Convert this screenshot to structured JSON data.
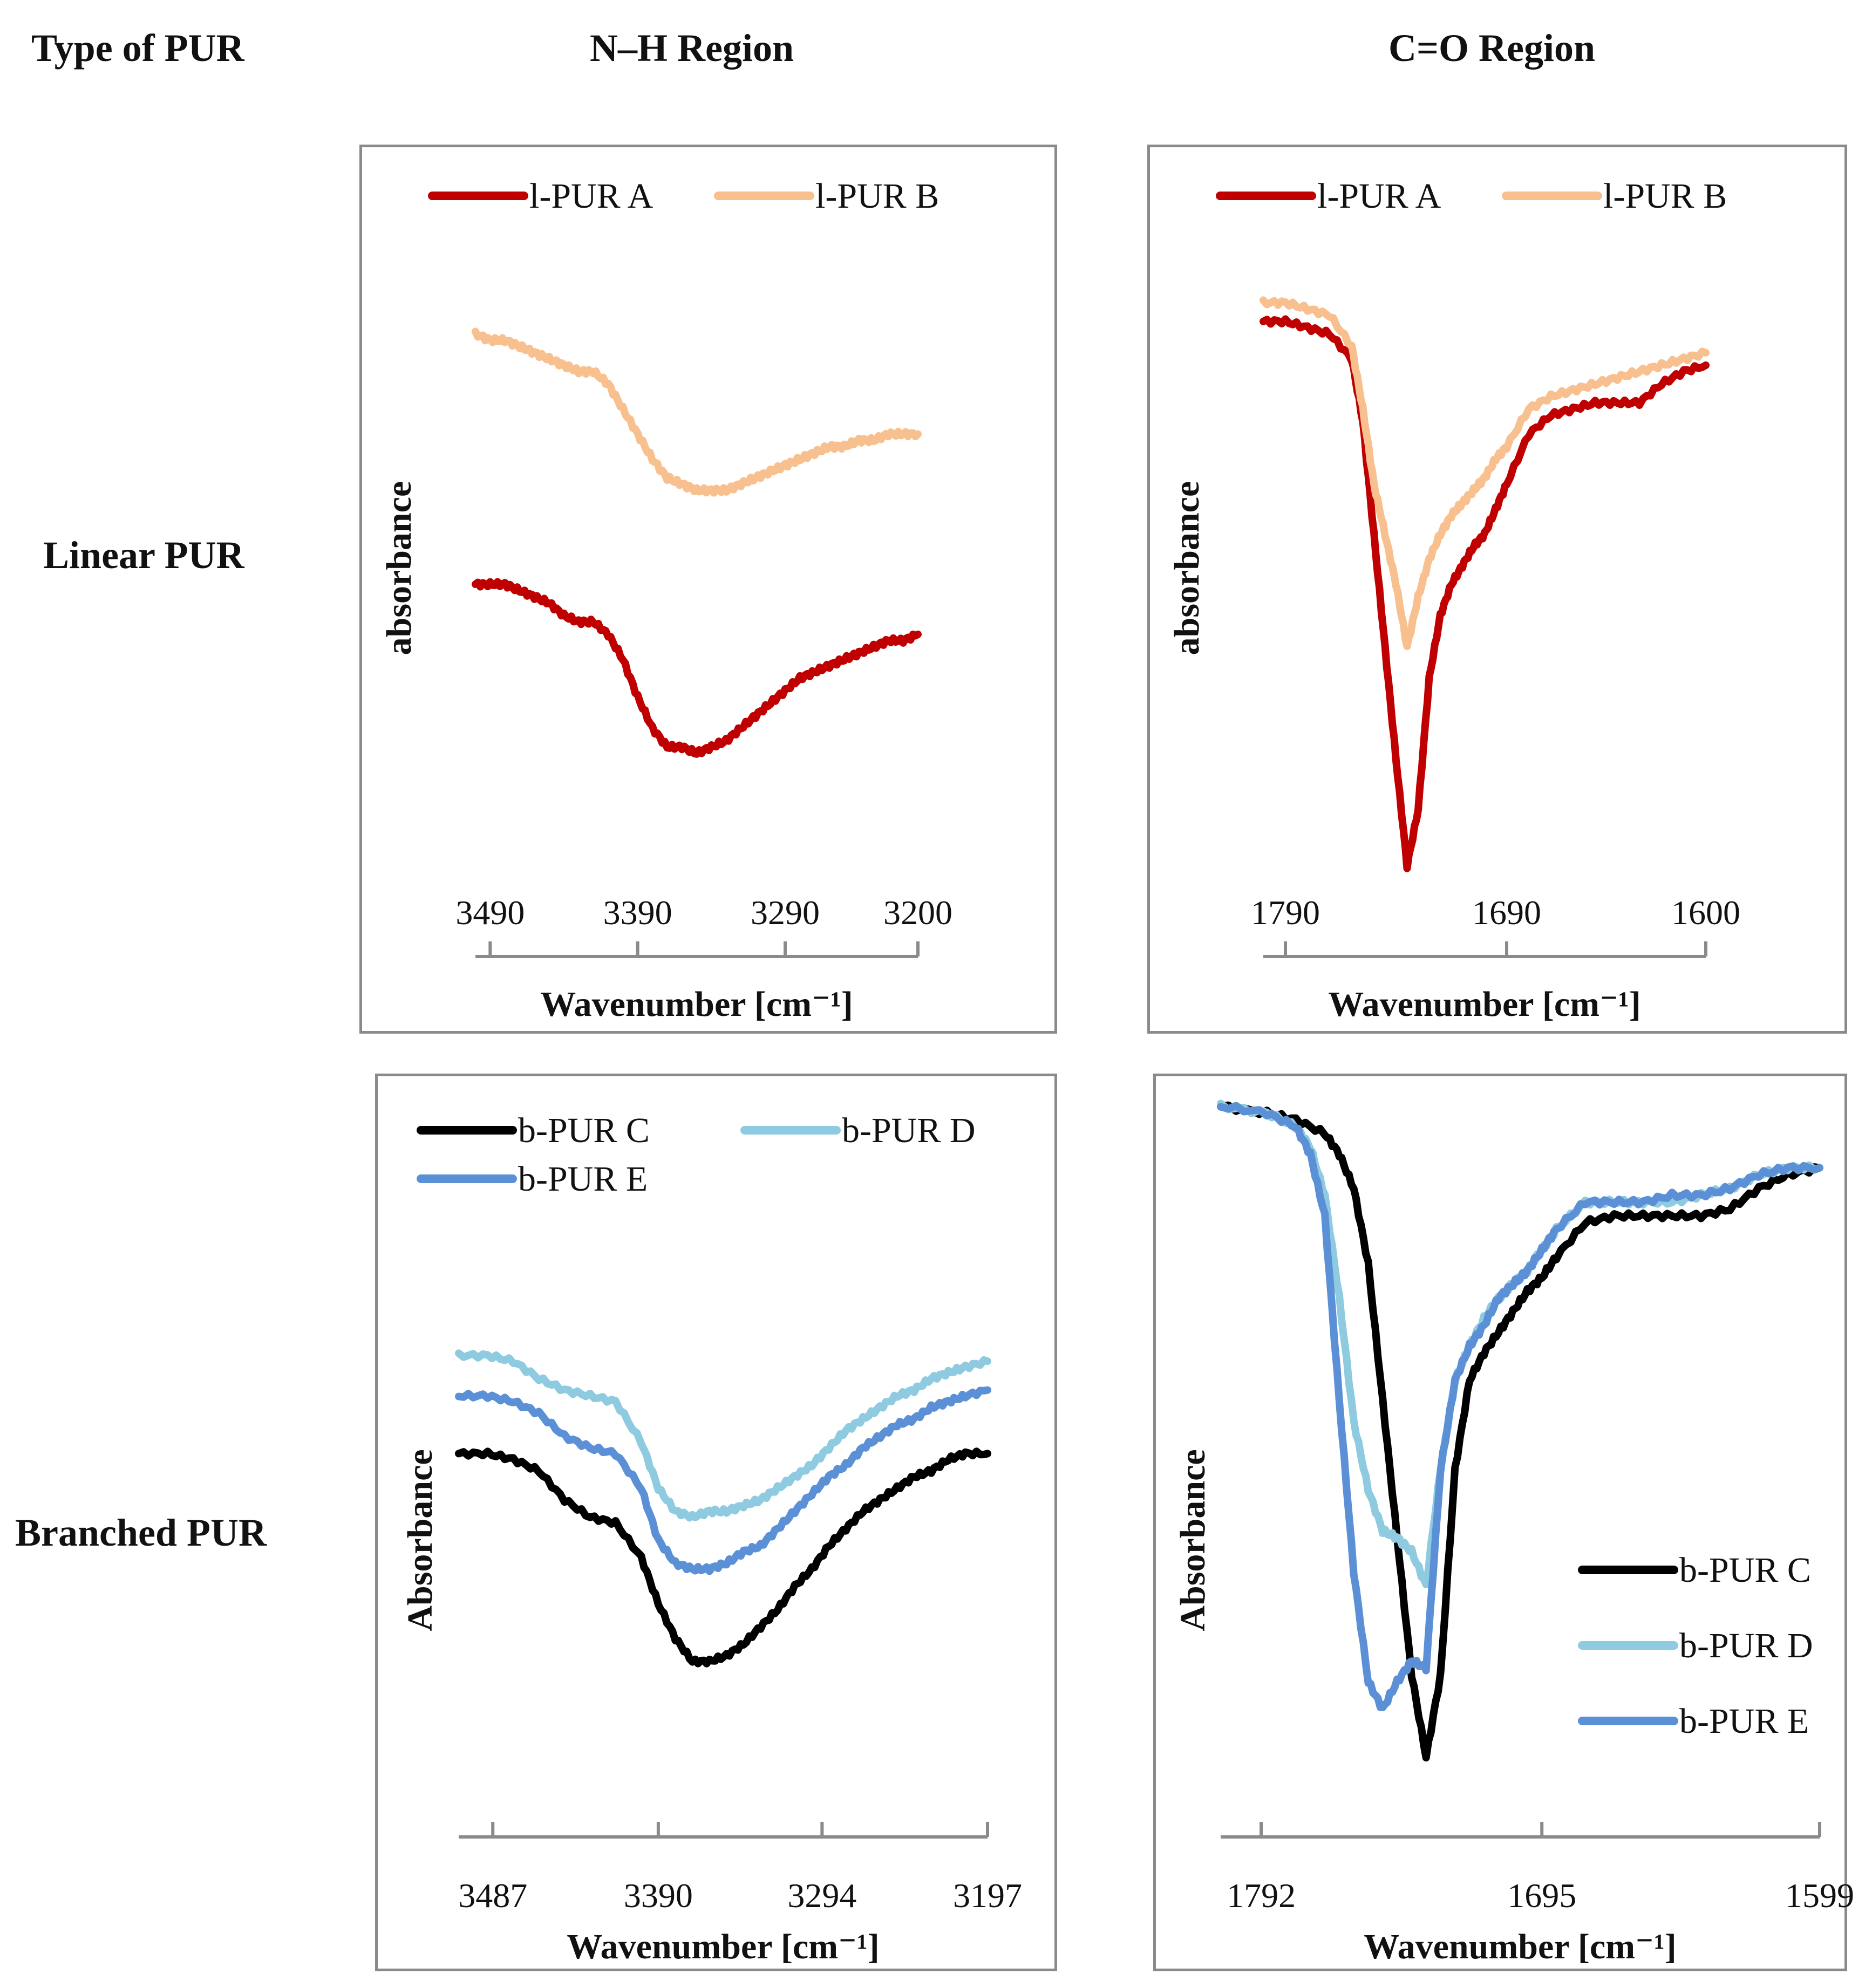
{
  "headers": {
    "type_of_pur": "Type of PUR",
    "nh_region": "N–H Region",
    "co_region": "C=O Region"
  },
  "row_labels": {
    "linear": "Linear PUR",
    "branched": "Branched PUR"
  },
  "colors": {
    "pur_a": "#c00000",
    "pur_b": "#f8c08e",
    "pur_c": "#000000",
    "pur_d": "#8ecae0",
    "pur_e": "#5b90d6",
    "axis": "#8a8a8a"
  },
  "chart_data": [
    {
      "id": "linear_nh",
      "type": "line",
      "title": "",
      "xlabel": "Wavenumber [cm⁻¹]",
      "ylabel": "absorbance",
      "x_reversed": true,
      "xlim": [
        3500,
        3200
      ],
      "ylim": [
        0,
        1
      ],
      "x_ticks": [
        3490,
        3390,
        3290,
        3200
      ],
      "x_tick_labels": [
        "3490",
        "3390",
        "3290",
        "3200"
      ],
      "legend_position": "top",
      "series": [
        {
          "name": "l-PUR A",
          "color": "#c00000",
          "x": [
            3500,
            3490,
            3480,
            3470,
            3460,
            3450,
            3440,
            3430,
            3420,
            3410,
            3400,
            3390,
            3380,
            3370,
            3360,
            3350,
            3340,
            3330,
            3320,
            3310,
            3300,
            3290,
            3280,
            3270,
            3260,
            3250,
            3240,
            3230,
            3220,
            3210,
            3200
          ],
          "y": [
            0.5,
            0.5,
            0.5,
            0.49,
            0.48,
            0.47,
            0.45,
            0.44,
            0.44,
            0.42,
            0.38,
            0.32,
            0.27,
            0.24,
            0.24,
            0.23,
            0.24,
            0.25,
            0.27,
            0.29,
            0.31,
            0.33,
            0.35,
            0.36,
            0.37,
            0.38,
            0.39,
            0.4,
            0.41,
            0.41,
            0.42
          ]
        },
        {
          "name": "l-PUR B",
          "color": "#f8c08e",
          "x": [
            3500,
            3490,
            3480,
            3470,
            3460,
            3450,
            3440,
            3430,
            3420,
            3410,
            3400,
            3390,
            3380,
            3370,
            3360,
            3350,
            3340,
            3330,
            3320,
            3310,
            3300,
            3290,
            3280,
            3270,
            3260,
            3250,
            3240,
            3230,
            3220,
            3210,
            3200
          ],
          "y": [
            0.9,
            0.89,
            0.89,
            0.88,
            0.87,
            0.86,
            0.85,
            0.84,
            0.84,
            0.82,
            0.78,
            0.74,
            0.7,
            0.67,
            0.66,
            0.65,
            0.65,
            0.65,
            0.66,
            0.67,
            0.68,
            0.69,
            0.7,
            0.71,
            0.72,
            0.72,
            0.73,
            0.73,
            0.74,
            0.74,
            0.74
          ]
        }
      ]
    },
    {
      "id": "linear_co",
      "type": "line",
      "title": "",
      "xlabel": "Wavenumber [cm⁻¹]",
      "ylabel": "absorbance",
      "x_reversed": true,
      "xlim": [
        1800,
        1600
      ],
      "ylim": [
        0,
        1
      ],
      "x_ticks": [
        1790,
        1690,
        1600
      ],
      "x_tick_labels": [
        "1790",
        "1690",
        "1600"
      ],
      "legend_position": "top",
      "series": [
        {
          "name": "l-PUR A",
          "color": "#c00000",
          "x": [
            1800,
            1790,
            1780,
            1770,
            1760,
            1755,
            1750,
            1745,
            1740,
            1735,
            1730,
            1725,
            1720,
            1715,
            1710,
            1705,
            1700,
            1695,
            1690,
            1680,
            1670,
            1660,
            1650,
            1640,
            1630,
            1620,
            1610,
            1600
          ],
          "y": [
            0.92,
            0.92,
            0.91,
            0.9,
            0.86,
            0.76,
            0.58,
            0.4,
            0.22,
            0.05,
            0.14,
            0.35,
            0.45,
            0.5,
            0.53,
            0.56,
            0.58,
            0.62,
            0.66,
            0.74,
            0.77,
            0.78,
            0.79,
            0.79,
            0.79,
            0.82,
            0.84,
            0.85
          ]
        },
        {
          "name": "l-PUR B",
          "color": "#f8c08e",
          "x": [
            1800,
            1790,
            1780,
            1770,
            1760,
            1755,
            1750,
            1745,
            1740,
            1735,
            1730,
            1725,
            1720,
            1715,
            1710,
            1705,
            1700,
            1695,
            1690,
            1680,
            1670,
            1660,
            1650,
            1640,
            1630,
            1620,
            1610,
            1600
          ],
          "y": [
            0.95,
            0.95,
            0.94,
            0.93,
            0.88,
            0.78,
            0.66,
            0.58,
            0.5,
            0.4,
            0.48,
            0.54,
            0.58,
            0.61,
            0.63,
            0.65,
            0.67,
            0.7,
            0.72,
            0.78,
            0.8,
            0.81,
            0.82,
            0.83,
            0.84,
            0.85,
            0.86,
            0.87
          ]
        }
      ]
    },
    {
      "id": "branched_nh",
      "type": "line",
      "title": "",
      "xlabel": "Wavenumber [cm⁻¹]",
      "ylabel": "Absorbance",
      "x_reversed": true,
      "xlim": [
        3507,
        3197
      ],
      "ylim": [
        0,
        1
      ],
      "x_ticks": [
        3487,
        3390,
        3294,
        3197
      ],
      "x_tick_labels": [
        "3487",
        "3390",
        "3294",
        "3197"
      ],
      "legend_position": "top",
      "series": [
        {
          "name": "b-PUR C",
          "color": "#000000",
          "x": [
            3507,
            3490,
            3475,
            3460,
            3445,
            3430,
            3415,
            3400,
            3390,
            3380,
            3370,
            3360,
            3350,
            3340,
            3330,
            3320,
            3310,
            3300,
            3290,
            3280,
            3270,
            3260,
            3250,
            3240,
            3230,
            3220,
            3210,
            3197
          ],
          "y": [
            0.58,
            0.58,
            0.57,
            0.55,
            0.5,
            0.47,
            0.46,
            0.4,
            0.32,
            0.26,
            0.22,
            0.22,
            0.23,
            0.25,
            0.28,
            0.31,
            0.35,
            0.38,
            0.42,
            0.45,
            0.48,
            0.5,
            0.52,
            0.54,
            0.55,
            0.57,
            0.58,
            0.58
          ]
        },
        {
          "name": "b-PUR D",
          "color": "#8ecae0",
          "x": [
            3507,
            3490,
            3475,
            3460,
            3445,
            3430,
            3415,
            3400,
            3390,
            3380,
            3370,
            3360,
            3350,
            3340,
            3330,
            3320,
            3310,
            3300,
            3290,
            3280,
            3270,
            3260,
            3250,
            3240,
            3230,
            3220,
            3210,
            3197
          ],
          "y": [
            0.75,
            0.75,
            0.74,
            0.71,
            0.69,
            0.68,
            0.67,
            0.6,
            0.52,
            0.48,
            0.47,
            0.48,
            0.48,
            0.49,
            0.5,
            0.52,
            0.54,
            0.56,
            0.59,
            0.62,
            0.64,
            0.66,
            0.68,
            0.69,
            0.71,
            0.72,
            0.73,
            0.74
          ]
        },
        {
          "name": "b-PUR E",
          "color": "#5b90d6",
          "x": [
            3507,
            3490,
            3475,
            3460,
            3445,
            3430,
            3415,
            3400,
            3390,
            3380,
            3370,
            3360,
            3350,
            3340,
            3330,
            3320,
            3310,
            3300,
            3290,
            3280,
            3270,
            3260,
            3250,
            3240,
            3230,
            3220,
            3210,
            3197
          ],
          "y": [
            0.68,
            0.68,
            0.67,
            0.65,
            0.61,
            0.59,
            0.58,
            0.52,
            0.43,
            0.39,
            0.38,
            0.38,
            0.39,
            0.41,
            0.42,
            0.45,
            0.48,
            0.51,
            0.54,
            0.56,
            0.59,
            0.61,
            0.63,
            0.64,
            0.66,
            0.67,
            0.68,
            0.69
          ]
        }
      ]
    },
    {
      "id": "branched_co",
      "type": "line",
      "title": "",
      "xlabel": "Wavenumber [cm⁻¹]",
      "ylabel": "Absorbance",
      "x_reversed": true,
      "xlim": [
        1806,
        1599
      ],
      "ylim": [
        0,
        1
      ],
      "x_ticks": [
        1792,
        1695,
        1599
      ],
      "x_tick_labels": [
        "1792",
        "1695",
        "1599"
      ],
      "legend_position": "bottom-right",
      "series": [
        {
          "name": "b-PUR C",
          "color": "#000000",
          "x": [
            1806,
            1790,
            1780,
            1770,
            1765,
            1760,
            1755,
            1750,
            1745,
            1740,
            1735,
            1730,
            1725,
            1720,
            1715,
            1710,
            1705,
            1700,
            1695,
            1690,
            1680,
            1670,
            1660,
            1650,
            1640,
            1630,
            1620,
            1610,
            1599
          ],
          "y": [
            0.98,
            0.97,
            0.96,
            0.94,
            0.91,
            0.86,
            0.75,
            0.55,
            0.35,
            0.15,
            0.03,
            0.15,
            0.45,
            0.58,
            0.62,
            0.65,
            0.68,
            0.71,
            0.73,
            0.76,
            0.81,
            0.82,
            0.82,
            0.82,
            0.82,
            0.83,
            0.86,
            0.88,
            0.89
          ]
        },
        {
          "name": "b-PUR D",
          "color": "#8ecae0",
          "x": [
            1806,
            1790,
            1780,
            1775,
            1770,
            1765,
            1760,
            1755,
            1750,
            1745,
            1740,
            1735,
            1730,
            1725,
            1720,
            1715,
            1710,
            1705,
            1700,
            1695,
            1690,
            1680,
            1670,
            1660,
            1650,
            1640,
            1630,
            1620,
            1610,
            1599
          ],
          "y": [
            0.98,
            0.97,
            0.95,
            0.92,
            0.85,
            0.7,
            0.52,
            0.42,
            0.36,
            0.35,
            0.33,
            0.28,
            0.45,
            0.58,
            0.63,
            0.67,
            0.7,
            0.72,
            0.74,
            0.77,
            0.8,
            0.84,
            0.84,
            0.84,
            0.84,
            0.85,
            0.86,
            0.88,
            0.89,
            0.89
          ]
        },
        {
          "name": "b-PUR E",
          "color": "#5b90d6",
          "x": [
            1806,
            1790,
            1780,
            1775,
            1770,
            1765,
            1760,
            1755,
            1750,
            1745,
            1740,
            1735,
            1730,
            1725,
            1720,
            1715,
            1710,
            1705,
            1700,
            1695,
            1690,
            1680,
            1670,
            1660,
            1650,
            1640,
            1630,
            1620,
            1610,
            1599
          ],
          "y": [
            0.98,
            0.97,
            0.95,
            0.91,
            0.82,
            0.55,
            0.3,
            0.14,
            0.1,
            0.14,
            0.17,
            0.16,
            0.45,
            0.58,
            0.63,
            0.66,
            0.7,
            0.72,
            0.74,
            0.77,
            0.8,
            0.84,
            0.84,
            0.84,
            0.85,
            0.85,
            0.86,
            0.88,
            0.89,
            0.89
          ]
        }
      ]
    }
  ]
}
